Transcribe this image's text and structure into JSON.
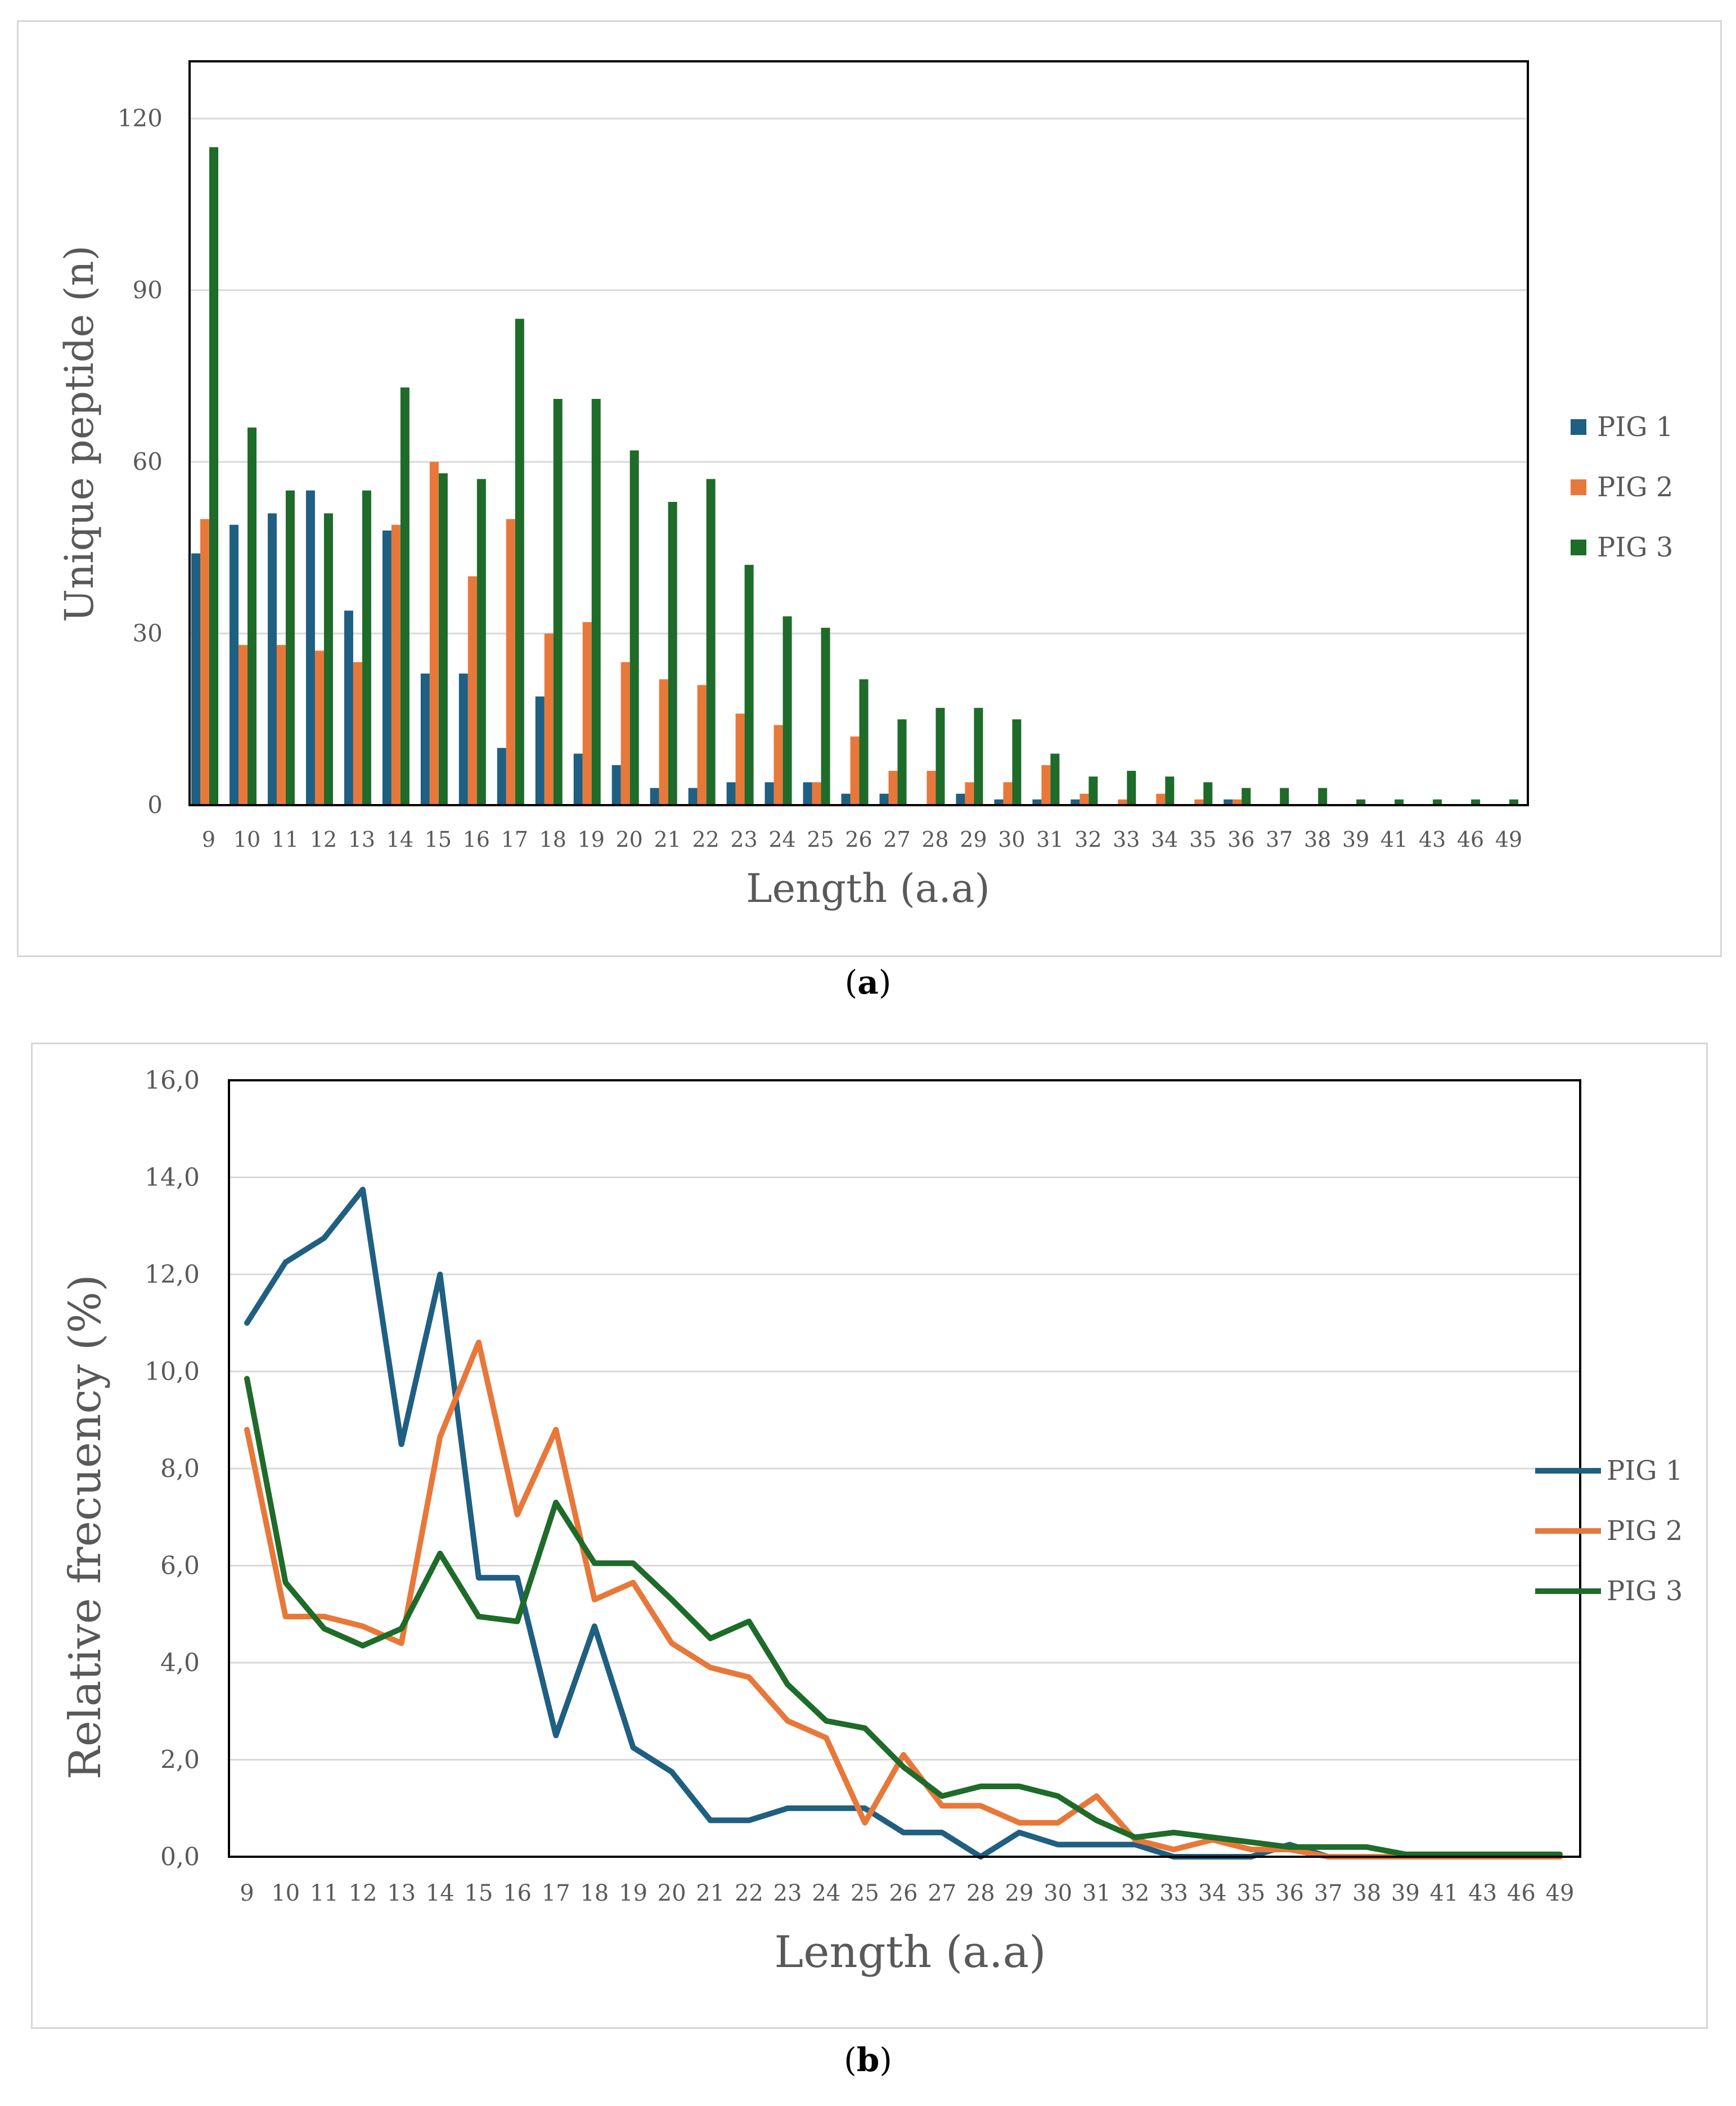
{
  "colors": {
    "pig1": "#1f5f82",
    "pig2": "#e8783a",
    "pig3": "#1e6b2a",
    "grid": "#d9d9d9",
    "text": "#595959"
  },
  "captions": {
    "a_open": "(",
    "a_letter": "a",
    "a_close": ")",
    "b_open": "(",
    "b_letter": "b",
    "b_close": ")"
  },
  "chart_data": [
    {
      "type": "bar",
      "xlabel": "Length (a.a)",
      "ylabel": "Unique peptide (n)",
      "ylim": [
        0,
        130
      ],
      "yticks": [
        "0",
        "30",
        "60",
        "90",
        "120"
      ],
      "ytick_values": [
        0,
        30,
        60,
        90,
        120
      ],
      "grid": true,
      "legend": "right",
      "categories": [
        "9",
        "10",
        "11",
        "12",
        "13",
        "14",
        "15",
        "16",
        "17",
        "18",
        "19",
        "20",
        "21",
        "22",
        "23",
        "24",
        "25",
        "26",
        "27",
        "28",
        "29",
        "30",
        "31",
        "32",
        "33",
        "34",
        "35",
        "36",
        "37",
        "38",
        "39",
        "41",
        "43",
        "46",
        "49"
      ],
      "series": [
        {
          "name": "PIG 1",
          "values": [
            44,
            49,
            51,
            55,
            34,
            48,
            23,
            23,
            10,
            19,
            9,
            7,
            3,
            3,
            4,
            4,
            4,
            2,
            2,
            0,
            2,
            1,
            1,
            1,
            0,
            0,
            0,
            1,
            0,
            0,
            0,
            0,
            0,
            0,
            0
          ]
        },
        {
          "name": "PIG 2",
          "values": [
            50,
            28,
            28,
            27,
            25,
            49,
            60,
            40,
            50,
            30,
            32,
            25,
            22,
            21,
            16,
            14,
            4,
            12,
            6,
            6,
            4,
            4,
            7,
            2,
            1,
            2,
            1,
            1,
            0,
            0,
            0,
            0,
            0,
            0,
            0
          ]
        },
        {
          "name": "PIG 3",
          "values": [
            115,
            66,
            55,
            51,
            55,
            73,
            58,
            57,
            85,
            71,
            71,
            62,
            53,
            57,
            42,
            33,
            31,
            22,
            15,
            17,
            17,
            15,
            9,
            5,
            6,
            5,
            4,
            3,
            3,
            3,
            1,
            1,
            1,
            1,
            1
          ]
        }
      ]
    },
    {
      "type": "line",
      "xlabel": "Length (a.a)",
      "ylabel": "Relative frecuency (%)",
      "ylim": [
        0,
        16
      ],
      "yticks": [
        "0,0",
        "2,0",
        "4,0",
        "6,0",
        "8,0",
        "10,0",
        "12,0",
        "14,0",
        "16,0"
      ],
      "ytick_values": [
        0,
        2,
        4,
        6,
        8,
        10,
        12,
        14,
        16
      ],
      "grid": true,
      "legend": "right",
      "categories": [
        "9",
        "10",
        "11",
        "12",
        "13",
        "14",
        "15",
        "16",
        "17",
        "18",
        "19",
        "20",
        "21",
        "22",
        "23",
        "24",
        "25",
        "26",
        "27",
        "28",
        "29",
        "30",
        "31",
        "32",
        "33",
        "34",
        "35",
        "36",
        "37",
        "38",
        "39",
        "41",
        "43",
        "46",
        "49"
      ],
      "series": [
        {
          "name": "PIG 1",
          "values": [
            11.0,
            12.25,
            12.75,
            13.75,
            8.5,
            12.0,
            5.75,
            5.75,
            2.5,
            4.75,
            2.25,
            1.75,
            0.75,
            0.75,
            1.0,
            1.0,
            1.0,
            0.5,
            0.5,
            0.0,
            0.5,
            0.25,
            0.25,
            0.25,
            0.0,
            0.0,
            0.0,
            0.25,
            0.0,
            0.0,
            0.0,
            0.0,
            0.0,
            0.0,
            0.0
          ]
        },
        {
          "name": "PIG 2",
          "values": [
            8.8,
            4.95,
            4.95,
            4.75,
            4.4,
            8.65,
            10.6,
            7.05,
            8.8,
            5.3,
            5.65,
            4.4,
            3.9,
            3.7,
            2.8,
            2.45,
            0.7,
            2.1,
            1.05,
            1.05,
            0.7,
            0.7,
            1.25,
            0.35,
            0.15,
            0.35,
            0.15,
            0.15,
            0.0,
            0.0,
            0.0,
            0.0,
            0.0,
            0.0,
            0.0
          ]
        },
        {
          "name": "PIG 3",
          "values": [
            9.85,
            5.65,
            4.7,
            4.35,
            4.7,
            6.25,
            4.95,
            4.85,
            7.3,
            6.05,
            6.05,
            5.3,
            4.5,
            4.85,
            3.55,
            2.8,
            2.65,
            1.85,
            1.25,
            1.45,
            1.45,
            1.25,
            0.75,
            0.4,
            0.5,
            0.4,
            0.3,
            0.2,
            0.2,
            0.2,
            0.05,
            0.05,
            0.05,
            0.05,
            0.05
          ]
        }
      ]
    }
  ]
}
